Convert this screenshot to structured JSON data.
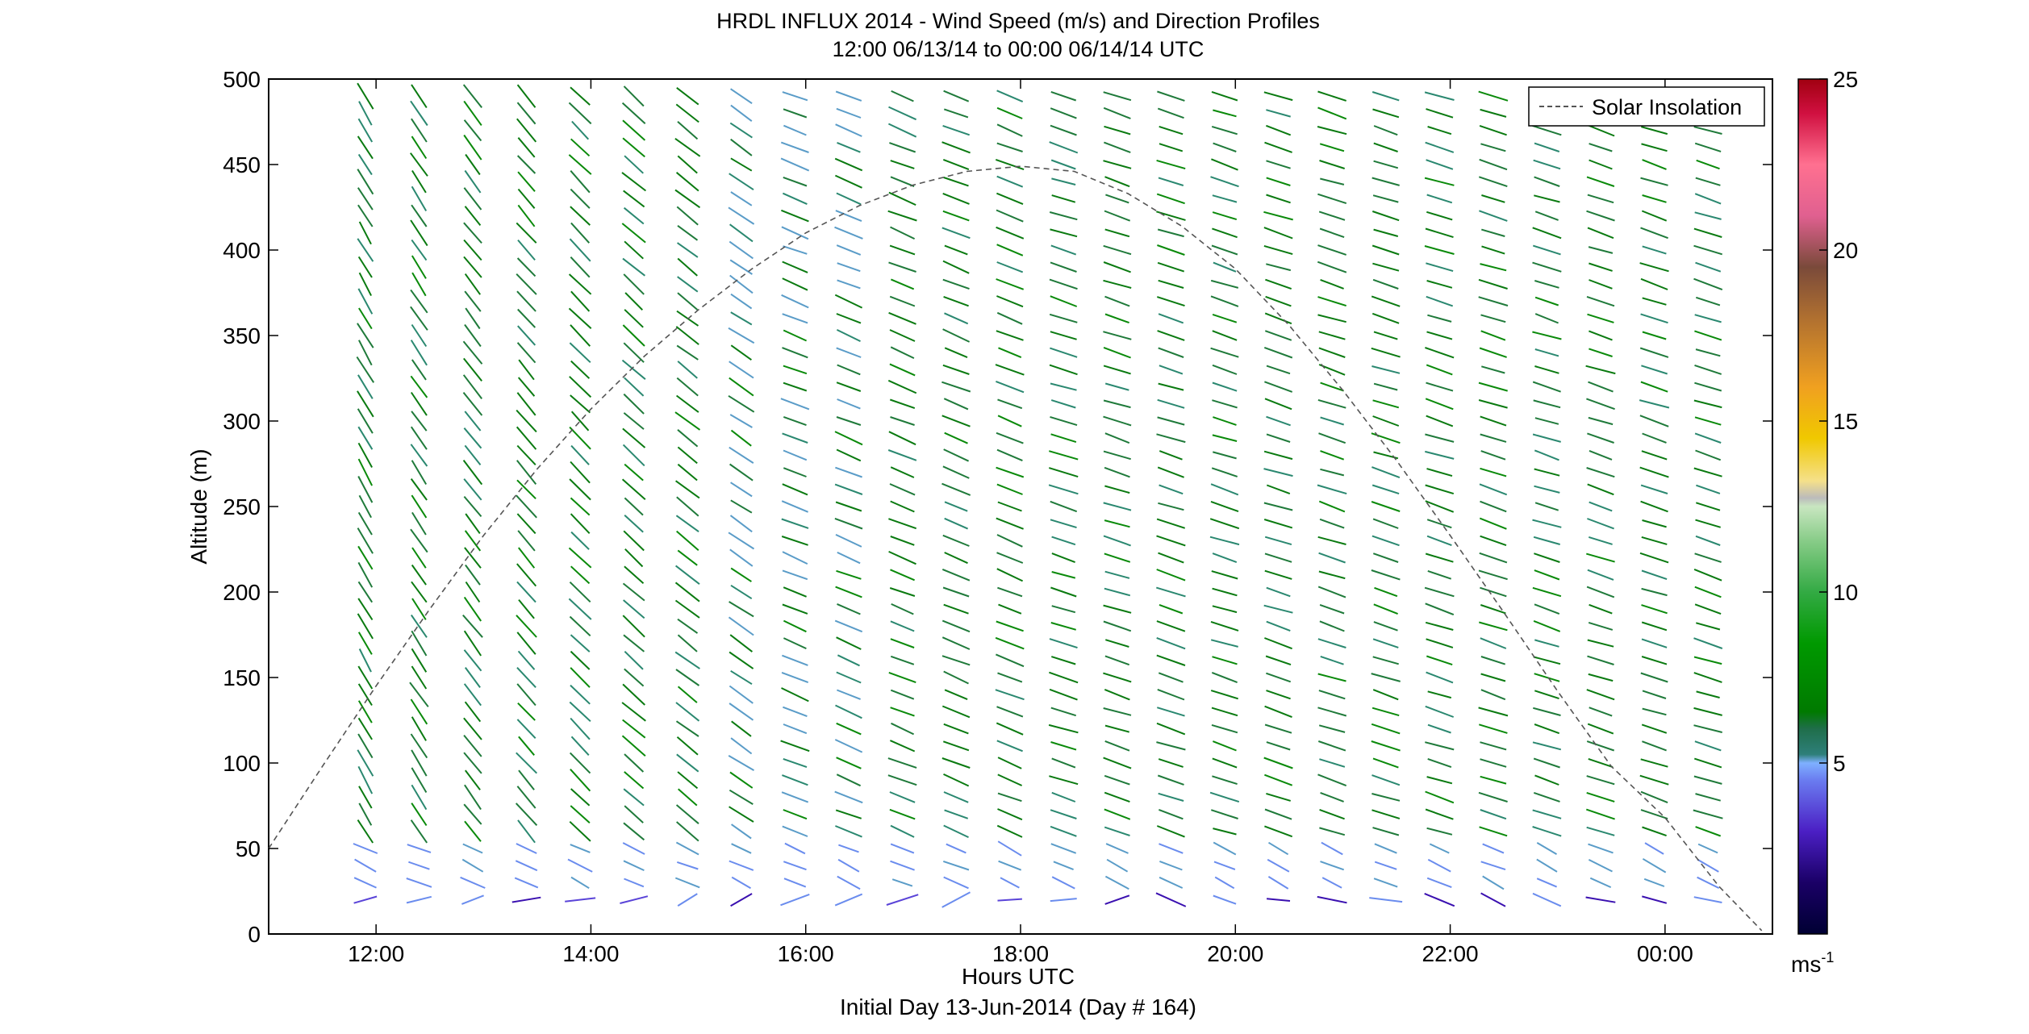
{
  "chart_data": {
    "type": "wind-barb-profile",
    "title_line1": "HRDL INFLUX 2014 - Wind Speed (m/s) and Direction Profiles",
    "title_line2": "12:00 06/13/14 to 00:00 06/14/14  UTC",
    "xlabel": "Hours UTC",
    "xlabel2": "Initial Day 13-Jun-2014 (Day # 164)",
    "ylabel": "Altitude (m)",
    "x_range_hours": [
      11.0,
      25.0
    ],
    "y_range": [
      0,
      500
    ],
    "x_ticks": [
      {
        "hour": 12,
        "label": "12:00"
      },
      {
        "hour": 14,
        "label": "14:00"
      },
      {
        "hour": 16,
        "label": "16:00"
      },
      {
        "hour": 18,
        "label": "18:00"
      },
      {
        "hour": 20,
        "label": "20:00"
      },
      {
        "hour": 22,
        "label": "22:00"
      },
      {
        "hour": 24,
        "label": "00:00"
      }
    ],
    "y_ticks": [
      0,
      50,
      100,
      150,
      200,
      250,
      300,
      350,
      400,
      450,
      500
    ],
    "grid": false,
    "legend": {
      "placement": "top-right",
      "entries": [
        {
          "label": "Solar Insolation",
          "style": "dashed",
          "color": "#555555"
        }
      ]
    },
    "colorbar": {
      "range": [
        0,
        25
      ],
      "ticks": [
        5,
        10,
        15,
        20,
        25
      ],
      "unit_label": "ms",
      "unit_exponent": "-1"
    },
    "solar_insolation": {
      "x_hours": [
        11.0,
        11.5,
        12.0,
        12.5,
        13.0,
        13.5,
        14.0,
        14.5,
        15.0,
        15.5,
        16.0,
        16.5,
        17.0,
        17.5,
        18.0,
        18.5,
        19.0,
        19.5,
        20.0,
        20.5,
        21.0,
        21.5,
        22.0,
        22.5,
        23.0,
        23.5,
        24.0,
        24.5,
        24.9
      ],
      "altitude": [
        50,
        98,
        145,
        190,
        233,
        272,
        307,
        338,
        365,
        389,
        410,
        426,
        438,
        446,
        449,
        446,
        433,
        414,
        389,
        356,
        318,
        277,
        233,
        188,
        142,
        98,
        68,
        28,
        2
      ]
    },
    "time_columns_hours": [
      11.9,
      12.4,
      12.9,
      13.4,
      13.9,
      14.4,
      14.9,
      15.4,
      15.9,
      16.4,
      16.9,
      17.4,
      17.9,
      18.4,
      18.9,
      19.4,
      19.9,
      20.4,
      20.9,
      21.4,
      21.9,
      22.4,
      22.9,
      23.4,
      23.9,
      24.4
    ],
    "altitude_levels": [
      20,
      30,
      40,
      50,
      60,
      70,
      80,
      90,
      100,
      110,
      120,
      130,
      140,
      150,
      160,
      170,
      180,
      190,
      200,
      210,
      220,
      230,
      240,
      250,
      260,
      270,
      280,
      290,
      300,
      310,
      320,
      330,
      340,
      350,
      360,
      370,
      380,
      390,
      400,
      410,
      420,
      430,
      440,
      450,
      460,
      470,
      480,
      490
    ],
    "surface_layer": {
      "note": "lowest 20-50 m shown as purple/blue (2-5 m/s) winds",
      "speed_range": [
        2,
        5
      ]
    },
    "upper_layer_speed_range": [
      6,
      9
    ]
  }
}
